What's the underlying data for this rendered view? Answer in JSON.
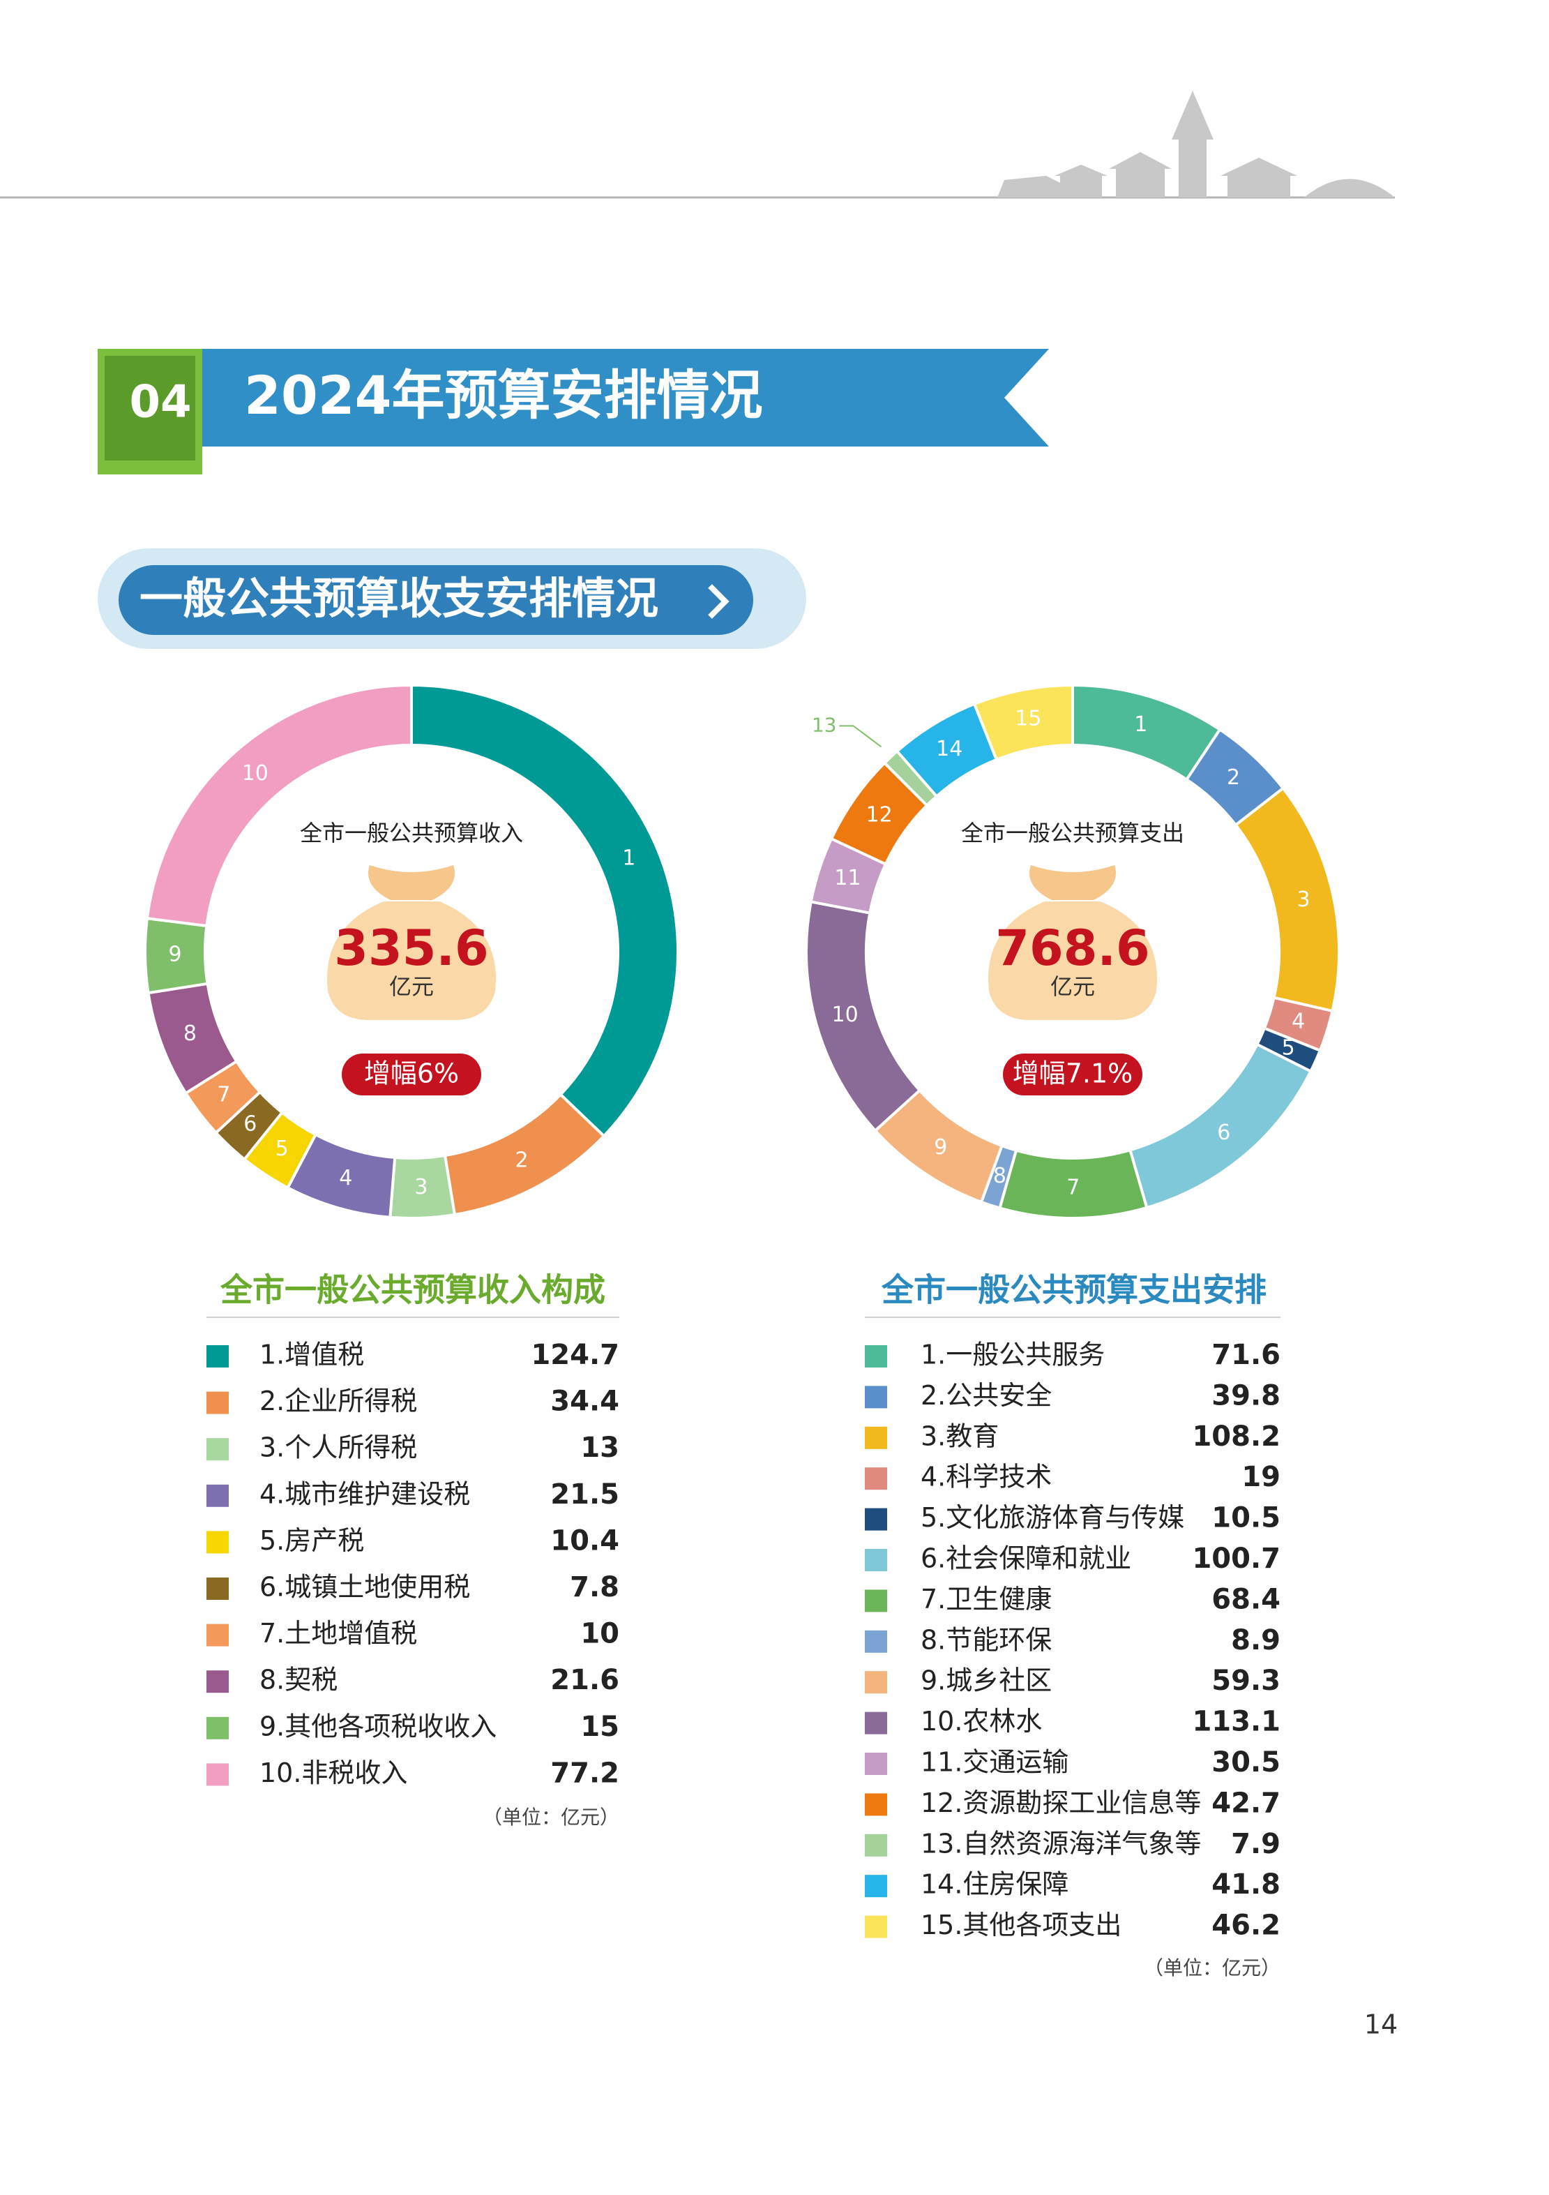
{
  "header": {
    "section_number": "04",
    "title": "2024年预算安排情况",
    "subtitle": "一般公共预算收支安排情况"
  },
  "chart_data": [
    {
      "type": "pie",
      "donut": true,
      "center_title": "全市一般公共预算收入",
      "total": 335.6,
      "total_unit": "亿元",
      "growth": "增幅6%",
      "legend_title": "全市一般公共预算收入构成",
      "legend_title_color": "#6aab2e",
      "unit_note": "（单位：亿元）",
      "slice_labels": [
        "1",
        "2",
        "3",
        "4",
        "5",
        "6",
        "7",
        "8",
        "9",
        "10"
      ],
      "categories": [
        "1.增值税",
        "2.企业所得税",
        "3.个人所得税",
        "4.城市维护建设税",
        "5.房产税",
        "6.城镇土地使用税",
        "7.土地增值税",
        "8.契税",
        "9.其他各项税收收入",
        "10.非税收入"
      ],
      "values": [
        124.7,
        34.4,
        13,
        21.5,
        10.4,
        7.8,
        10,
        21.6,
        15,
        77.2
      ],
      "colors": [
        "#009a96",
        "#f0904e",
        "#a8d8a0",
        "#7e6fb0",
        "#f7d500",
        "#8a6a22",
        "#f39a5a",
        "#9a5a8e",
        "#7fbf6a",
        "#f19ec2"
      ]
    },
    {
      "type": "pie",
      "donut": true,
      "center_title": "全市一般公共预算支出",
      "total": 768.6,
      "total_unit": "亿元",
      "growth": "增幅7.1%",
      "legend_title": "全市一般公共预算支出安排",
      "legend_title_color": "#2a8ac0",
      "unit_note": "（单位：亿元）",
      "slice_labels": [
        "1",
        "2",
        "3",
        "4",
        "5",
        "6",
        "7",
        "8",
        "9",
        "10",
        "11",
        "12",
        "13",
        "14",
        "15"
      ],
      "categories": [
        "1.一般公共服务",
        "2.公共安全",
        "3.教育",
        "4.科学技术",
        "5.文化旅游体育与传媒",
        "6.社会保障和就业",
        "7.卫生健康",
        "8.节能环保",
        "9.城乡社区",
        "10.农林水",
        "11.交通运输",
        "12.资源勘探工业信息等",
        "13.自然资源海洋气象等",
        "14.住房保障",
        "15.其他各项支出"
      ],
      "values": [
        71.6,
        39.8,
        108.2,
        19,
        10.5,
        100.7,
        68.4,
        8.9,
        59.3,
        113.1,
        30.5,
        42.7,
        7.9,
        41.8,
        46.2
      ],
      "colors": [
        "#4dbb9a",
        "#5b8fcb",
        "#f1b91e",
        "#e08a80",
        "#1f4e7e",
        "#7ec8da",
        "#6ab558",
        "#7ba4d4",
        "#f5b37e",
        "#8a6b97",
        "#c59cc6",
        "#ee7a0f",
        "#a5d29a",
        "#27b4e8",
        "#fbe35a"
      ]
    }
  ],
  "page_number": "14"
}
